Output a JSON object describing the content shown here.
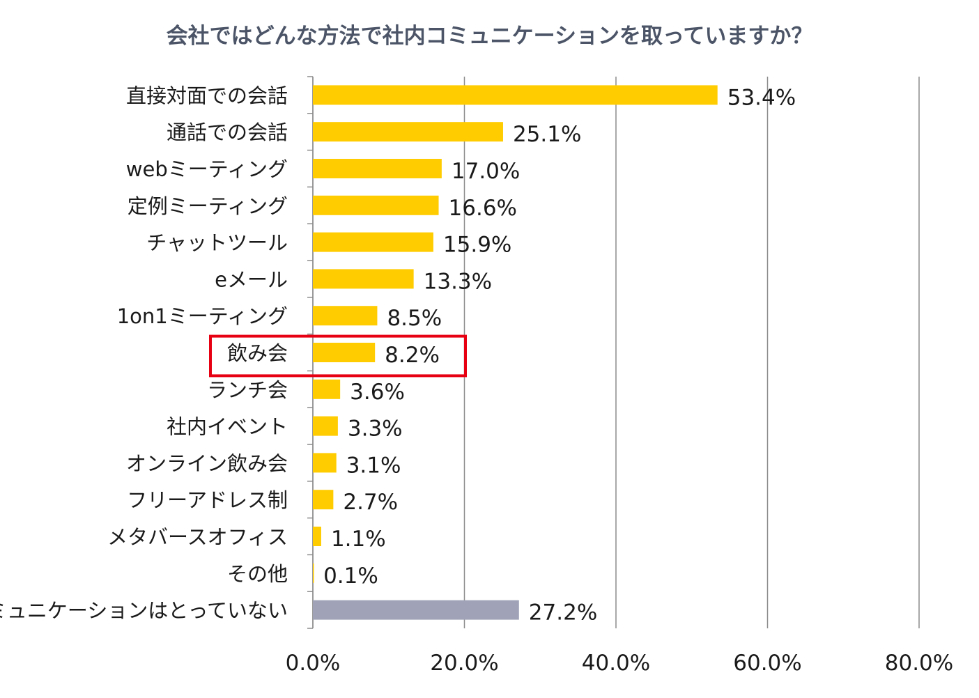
{
  "colors": {
    "bar": "#ffcc00",
    "bar_highlight_none": "#a0a3b8",
    "grid": "#8c8c8c",
    "text": "#1a1a1a",
    "title": "#4b5567",
    "highlight_box": "#e60012"
  },
  "chart_data": {
    "type": "bar",
    "orientation": "horizontal",
    "title": "会社ではどんな方法で社内コミュニケーションを取っていますか？",
    "xlim": [
      0,
      80
    ],
    "x_ticks": [
      "0.0%",
      "20.0%",
      "40.0%",
      "60.0%",
      "80.0%"
    ],
    "grid": true,
    "categories": [
      "直接対面での会話",
      "通話での会話",
      "webミーティング",
      "定例ミーティング",
      "チャットツール",
      "eメール",
      "1on1ミーティング",
      "飲み会",
      "ランチ会",
      "社内イベント",
      "オンライン飲み会",
      "フリーアドレス制",
      "メタバースオフィス",
      "その他",
      "コミュニケーションはとっていない"
    ],
    "values": [
      53.4,
      25.1,
      17.0,
      16.6,
      15.9,
      13.3,
      8.5,
      8.2,
      3.6,
      3.3,
      3.1,
      2.7,
      1.1,
      0.1,
      27.2
    ],
    "data_labels": [
      "53.4%",
      "25.1%",
      "17.0%",
      "16.6%",
      "15.9%",
      "13.3%",
      "8.5%",
      "8.2%",
      "3.6%",
      "3.3%",
      "3.1%",
      "2.7%",
      "1.1%",
      "0.1%",
      "27.2%"
    ],
    "gray_bar_index": 14,
    "highlighted_index": 7
  }
}
